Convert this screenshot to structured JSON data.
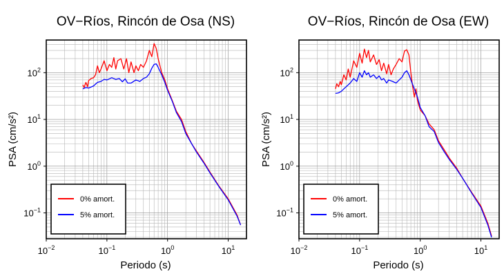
{
  "chart_data": [
    {
      "type": "line",
      "title": "OV−Ríos, Rincón de Osa (NS)",
      "xlabel": "Periodo (s)",
      "ylabel": "PSA (cm/s²)",
      "x_scale": "log",
      "y_scale": "log",
      "xlim": [
        0.01,
        20
      ],
      "ylim": [
        0.028,
        500
      ],
      "grid": true,
      "legend_position": "bottom-left",
      "x_ticks": [
        {
          "value": 0.01,
          "base": "10",
          "exp": "−2"
        },
        {
          "value": 0.1,
          "base": "10",
          "exp": "−1"
        },
        {
          "value": 1,
          "base": "10",
          "exp": "0"
        },
        {
          "value": 10,
          "base": "10",
          "exp": "1"
        }
      ],
      "y_ticks": [
        {
          "value": 0.1,
          "base": "10",
          "exp": "−1"
        },
        {
          "value": 1,
          "base": "10",
          "exp": "0"
        },
        {
          "value": 10,
          "base": "10",
          "exp": "1"
        },
        {
          "value": 100,
          "base": "10",
          "exp": "2"
        }
      ],
      "series": [
        {
          "name": "0% amort.",
          "color": "#ff0000",
          "points": [
            [
              0.04,
              55
            ],
            [
              0.042,
              48
            ],
            [
              0.045,
              62
            ],
            [
              0.048,
              50
            ],
            [
              0.05,
              68
            ],
            [
              0.055,
              75
            ],
            [
              0.06,
              78
            ],
            [
              0.065,
              90
            ],
            [
              0.07,
              140
            ],
            [
              0.075,
              100
            ],
            [
              0.08,
              120
            ],
            [
              0.09,
              180
            ],
            [
              0.1,
              110
            ],
            [
              0.11,
              150
            ],
            [
              0.12,
              130
            ],
            [
              0.13,
              210
            ],
            [
              0.14,
              120
            ],
            [
              0.15,
              180
            ],
            [
              0.17,
              200
            ],
            [
              0.19,
              120
            ],
            [
              0.21,
              200
            ],
            [
              0.23,
              100
            ],
            [
              0.25,
              170
            ],
            [
              0.28,
              100
            ],
            [
              0.3,
              140
            ],
            [
              0.33,
              110
            ],
            [
              0.36,
              150
            ],
            [
              0.4,
              130
            ],
            [
              0.45,
              180
            ],
            [
              0.5,
              300
            ],
            [
              0.55,
              220
            ],
            [
              0.6,
              420
            ],
            [
              0.65,
              330
            ],
            [
              0.7,
              200
            ],
            [
              0.8,
              100
            ],
            [
              0.9,
              70
            ],
            [
              1.0,
              45
            ],
            [
              1.2,
              25
            ],
            [
              1.4,
              15
            ],
            [
              1.7,
              10
            ],
            [
              2.0,
              5.5
            ],
            [
              2.5,
              3
            ],
            [
              3,
              2.1
            ],
            [
              4,
              1.2
            ],
            [
              5,
              0.75
            ],
            [
              7,
              0.38
            ],
            [
              10,
              0.2
            ],
            [
              14,
              0.09
            ],
            [
              16,
              0.055
            ]
          ]
        },
        {
          "name": "5% amort.",
          "color": "#0000ff",
          "points": [
            [
              0.04,
              45
            ],
            [
              0.045,
              48
            ],
            [
              0.05,
              47
            ],
            [
              0.06,
              52
            ],
            [
              0.07,
              62
            ],
            [
              0.08,
              65
            ],
            [
              0.09,
              72
            ],
            [
              0.1,
              70
            ],
            [
              0.12,
              78
            ],
            [
              0.14,
              72
            ],
            [
              0.16,
              75
            ],
            [
              0.18,
              64
            ],
            [
              0.2,
              74
            ],
            [
              0.22,
              60
            ],
            [
              0.25,
              60
            ],
            [
              0.3,
              70
            ],
            [
              0.35,
              65
            ],
            [
              0.4,
              75
            ],
            [
              0.45,
              80
            ],
            [
              0.5,
              95
            ],
            [
              0.55,
              125
            ],
            [
              0.6,
              150
            ],
            [
              0.65,
              155
            ],
            [
              0.7,
              130
            ],
            [
              0.8,
              90
            ],
            [
              0.9,
              62
            ],
            [
              1.0,
              42
            ],
            [
              1.2,
              24
            ],
            [
              1.4,
              14
            ],
            [
              1.7,
              9
            ],
            [
              2.0,
              5
            ],
            [
              2.5,
              3
            ],
            [
              3,
              2
            ],
            [
              4,
              1.15
            ],
            [
              5,
              0.72
            ],
            [
              7,
              0.37
            ],
            [
              10,
              0.19
            ],
            [
              14,
              0.085
            ],
            [
              16,
              0.055
            ]
          ]
        }
      ]
    },
    {
      "type": "line",
      "title": "OV−Ríos, Rincón de Osa (EW)",
      "xlabel": "Periodo (s)",
      "ylabel": "PSA (cm/s²)",
      "x_scale": "log",
      "y_scale": "log",
      "xlim": [
        0.01,
        20
      ],
      "ylim": [
        0.028,
        500
      ],
      "grid": true,
      "legend_position": "bottom-left",
      "x_ticks": [
        {
          "value": 0.01,
          "base": "10",
          "exp": "−2"
        },
        {
          "value": 0.1,
          "base": "10",
          "exp": "−1"
        },
        {
          "value": 1,
          "base": "10",
          "exp": "0"
        },
        {
          "value": 10,
          "base": "10",
          "exp": "1"
        }
      ],
      "y_ticks": [
        {
          "value": 0.1,
          "base": "10",
          "exp": "−1"
        },
        {
          "value": 1,
          "base": "10",
          "exp": "0"
        },
        {
          "value": 10,
          "base": "10",
          "exp": "1"
        },
        {
          "value": 100,
          "base": "10",
          "exp": "2"
        }
      ],
      "series": [
        {
          "name": "0% amort.",
          "color": "#ff0000",
          "points": [
            [
              0.04,
              45
            ],
            [
              0.042,
              58
            ],
            [
              0.045,
              50
            ],
            [
              0.048,
              65
            ],
            [
              0.05,
              55
            ],
            [
              0.055,
              90
            ],
            [
              0.06,
              70
            ],
            [
              0.065,
              120
            ],
            [
              0.07,
              80
            ],
            [
              0.08,
              180
            ],
            [
              0.09,
              130
            ],
            [
              0.1,
              260
            ],
            [
              0.11,
              160
            ],
            [
              0.12,
              320
            ],
            [
              0.13,
              210
            ],
            [
              0.14,
              300
            ],
            [
              0.15,
              170
            ],
            [
              0.17,
              240
            ],
            [
              0.19,
              150
            ],
            [
              0.21,
              190
            ],
            [
              0.23,
              110
            ],
            [
              0.25,
              160
            ],
            [
              0.28,
              95
            ],
            [
              0.3,
              150
            ],
            [
              0.33,
              90
            ],
            [
              0.36,
              120
            ],
            [
              0.4,
              150
            ],
            [
              0.45,
              200
            ],
            [
              0.5,
              170
            ],
            [
              0.55,
              290
            ],
            [
              0.6,
              310
            ],
            [
              0.65,
              240
            ],
            [
              0.7,
              100
            ],
            [
              0.75,
              50
            ],
            [
              0.8,
              30
            ],
            [
              0.85,
              45
            ],
            [
              0.9,
              25
            ],
            [
              1.0,
              16
            ],
            [
              1.2,
              12
            ],
            [
              1.4,
              8
            ],
            [
              1.7,
              6
            ],
            [
              2.0,
              3.5
            ],
            [
              2.5,
              2.2
            ],
            [
              3,
              1.5
            ],
            [
              4,
              0.9
            ],
            [
              5,
              0.55
            ],
            [
              7,
              0.28
            ],
            [
              10,
              0.14
            ],
            [
              13,
              0.06
            ],
            [
              15,
              0.032
            ]
          ]
        },
        {
          "name": "5% amort.",
          "color": "#0000ff",
          "points": [
            [
              0.04,
              36
            ],
            [
              0.045,
              37
            ],
            [
              0.05,
              40
            ],
            [
              0.055,
              45
            ],
            [
              0.06,
              50
            ],
            [
              0.07,
              60
            ],
            [
              0.08,
              75
            ],
            [
              0.09,
              65
            ],
            [
              0.1,
              100
            ],
            [
              0.11,
              80
            ],
            [
              0.12,
              110
            ],
            [
              0.13,
              90
            ],
            [
              0.14,
              100
            ],
            [
              0.15,
              80
            ],
            [
              0.17,
              90
            ],
            [
              0.19,
              75
            ],
            [
              0.21,
              85
            ],
            [
              0.23,
              70
            ],
            [
              0.25,
              75
            ],
            [
              0.28,
              60
            ],
            [
              0.3,
              70
            ],
            [
              0.35,
              65
            ],
            [
              0.4,
              60
            ],
            [
              0.45,
              70
            ],
            [
              0.5,
              80
            ],
            [
              0.55,
              100
            ],
            [
              0.6,
              110
            ],
            [
              0.65,
              90
            ],
            [
              0.7,
              70
            ],
            [
              0.8,
              45
            ],
            [
              0.9,
              30
            ],
            [
              1.0,
              18
            ],
            [
              1.2,
              12
            ],
            [
              1.4,
              7
            ],
            [
              1.7,
              5.5
            ],
            [
              2.0,
              3.2
            ],
            [
              2.5,
              2
            ],
            [
              3,
              1.4
            ],
            [
              4,
              0.85
            ],
            [
              5,
              0.55
            ],
            [
              7,
              0.27
            ],
            [
              10,
              0.13
            ],
            [
              13,
              0.055
            ],
            [
              15,
              0.03
            ]
          ]
        }
      ]
    }
  ]
}
